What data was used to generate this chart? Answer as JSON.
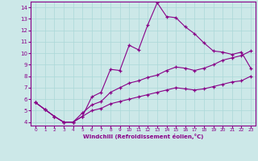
{
  "xlabel": "Windchill (Refroidissement éolien,°C)",
  "bg_color": "#cce8e8",
  "line_color": "#880088",
  "grid_color": "#aad8d8",
  "xlim": [
    -0.5,
    23.5
  ],
  "ylim": [
    3.7,
    14.5
  ],
  "xticks": [
    0,
    1,
    2,
    3,
    4,
    5,
    6,
    7,
    8,
    9,
    10,
    11,
    12,
    13,
    14,
    15,
    16,
    17,
    18,
    19,
    20,
    21,
    22,
    23
  ],
  "yticks": [
    4,
    5,
    6,
    7,
    8,
    9,
    10,
    11,
    12,
    13,
    14
  ],
  "line1_x": [
    0,
    1,
    2,
    3,
    4,
    5,
    6,
    7,
    8,
    9,
    10,
    11,
    12,
    13,
    14,
    15,
    16,
    17,
    18,
    19,
    20,
    21,
    22,
    23
  ],
  "line1_y": [
    5.7,
    5.1,
    4.5,
    4.0,
    4.0,
    4.5,
    6.2,
    6.6,
    8.6,
    8.5,
    10.7,
    10.3,
    12.5,
    14.4,
    13.2,
    13.1,
    12.3,
    11.7,
    10.9,
    10.2,
    10.1,
    9.9,
    10.1,
    8.7
  ],
  "line2_x": [
    0,
    1,
    2,
    3,
    4,
    5,
    6,
    7,
    8,
    9,
    10,
    11,
    12,
    13,
    14,
    15,
    16,
    17,
    18,
    19,
    20,
    21,
    22,
    23
  ],
  "line2_y": [
    5.7,
    5.1,
    4.5,
    4.0,
    4.0,
    4.8,
    5.5,
    5.8,
    6.6,
    7.0,
    7.4,
    7.6,
    7.9,
    8.1,
    8.5,
    8.8,
    8.7,
    8.5,
    8.7,
    9.0,
    9.4,
    9.6,
    9.8,
    10.2
  ],
  "line3_x": [
    0,
    1,
    2,
    3,
    4,
    5,
    6,
    7,
    8,
    9,
    10,
    11,
    12,
    13,
    14,
    15,
    16,
    17,
    18,
    19,
    20,
    21,
    22,
    23
  ],
  "line3_y": [
    5.7,
    5.1,
    4.5,
    4.0,
    4.0,
    4.5,
    5.0,
    5.2,
    5.6,
    5.8,
    6.0,
    6.2,
    6.4,
    6.6,
    6.8,
    7.0,
    6.9,
    6.8,
    6.9,
    7.1,
    7.3,
    7.5,
    7.6,
    8.0
  ]
}
